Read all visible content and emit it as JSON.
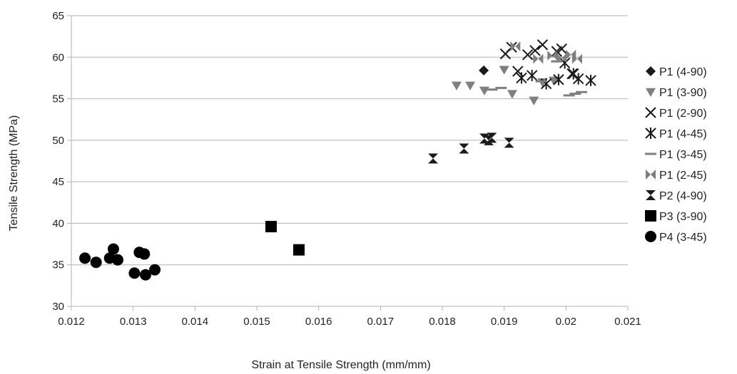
{
  "chart_data": {
    "type": "scatter",
    "title": "",
    "xlabel": "Strain at Tensile Strength (mm/mm)",
    "ylabel": "Tensile Strength (MPa)",
    "xlim": [
      0.012,
      0.021
    ],
    "ylim": [
      30,
      65
    ],
    "xticks": [
      "0.012",
      "0.013",
      "0.014",
      "0.015",
      "0.016",
      "0.017",
      "0.018",
      "0.019",
      "0.02",
      "0.021"
    ],
    "yticks": [
      "30",
      "35",
      "40",
      "45",
      "50",
      "55",
      "60",
      "65"
    ],
    "grid": "horizontal",
    "legend_position": "right",
    "series": [
      {
        "name": "P1 (4-90)",
        "marker": "diamond",
        "color": "#1a1a1a",
        "points": [
          [
            0.01867,
            58.4
          ]
        ]
      },
      {
        "name": "P1 (3-90)",
        "marker": "triangle-down",
        "color": "#7f7f7f",
        "points": [
          [
            0.01823,
            56.6
          ],
          [
            0.01845,
            56.6
          ],
          [
            0.01868,
            56.0
          ],
          [
            0.019,
            58.5
          ],
          [
            0.01913,
            55.6
          ],
          [
            0.01948,
            54.8
          ],
          [
            0.01962,
            57.0
          ],
          [
            0.0198,
            57.2
          ]
        ]
      },
      {
        "name": "P1 (2-90)",
        "marker": "x",
        "color": "#1a1a1a",
        "points": [
          [
            0.01902,
            60.4
          ],
          [
            0.01912,
            61.2
          ],
          [
            0.01922,
            58.3
          ],
          [
            0.01938,
            60.3
          ],
          [
            0.0195,
            60.8
          ],
          [
            0.01962,
            61.5
          ],
          [
            0.01985,
            60.7
          ],
          [
            0.01993,
            61.0
          ],
          [
            0.0201,
            58.0
          ]
        ]
      },
      {
        "name": "P1 (4-45)",
        "marker": "asterisk",
        "color": "#1a1a1a",
        "points": [
          [
            0.01928,
            57.5
          ],
          [
            0.01945,
            57.8
          ],
          [
            0.01968,
            56.8
          ],
          [
            0.01988,
            57.3
          ],
          [
            0.01998,
            59.3
          ],
          [
            0.02012,
            58.0
          ],
          [
            0.0202,
            57.4
          ],
          [
            0.0204,
            57.2
          ]
        ]
      },
      {
        "name": "P1 (3-45)",
        "marker": "dash",
        "color": "#7f7f7f",
        "points": [
          [
            0.0188,
            56.1
          ],
          [
            0.01895,
            56.3
          ],
          [
            0.0196,
            57.1
          ],
          [
            0.01985,
            59.5
          ],
          [
            0.02005,
            55.4
          ],
          [
            0.02015,
            55.6
          ],
          [
            0.02025,
            55.8
          ]
        ]
      },
      {
        "name": "P1 (2-45)",
        "marker": "bowtie",
        "color": "#7f7f7f",
        "points": [
          [
            0.01918,
            61.3
          ],
          [
            0.01955,
            59.8
          ],
          [
            0.01978,
            60.2
          ],
          [
            0.01993,
            59.9
          ],
          [
            0.02008,
            60.3
          ],
          [
            0.02018,
            59.8
          ]
        ]
      },
      {
        "name": "P2 (4-90)",
        "marker": "hourglass",
        "color": "#1a1a1a",
        "points": [
          [
            0.01785,
            47.8
          ],
          [
            0.01835,
            49.0
          ],
          [
            0.01868,
            50.2
          ],
          [
            0.01875,
            50.0
          ],
          [
            0.0188,
            50.3
          ],
          [
            0.01908,
            49.7
          ]
        ]
      },
      {
        "name": "P3 (3-90)",
        "marker": "square",
        "color": "#000000",
        "points": [
          [
            0.01523,
            39.6
          ],
          [
            0.01568,
            36.8
          ]
        ]
      },
      {
        "name": "P4 (3-45)",
        "marker": "circle",
        "color": "#000000",
        "points": [
          [
            0.01222,
            35.8
          ],
          [
            0.0124,
            35.3
          ],
          [
            0.01262,
            35.8
          ],
          [
            0.01268,
            36.9
          ],
          [
            0.01275,
            35.6
          ],
          [
            0.01302,
            34.0
          ],
          [
            0.0131,
            36.5
          ],
          [
            0.01318,
            36.3
          ],
          [
            0.0132,
            33.8
          ],
          [
            0.01335,
            34.4
          ]
        ]
      }
    ]
  }
}
